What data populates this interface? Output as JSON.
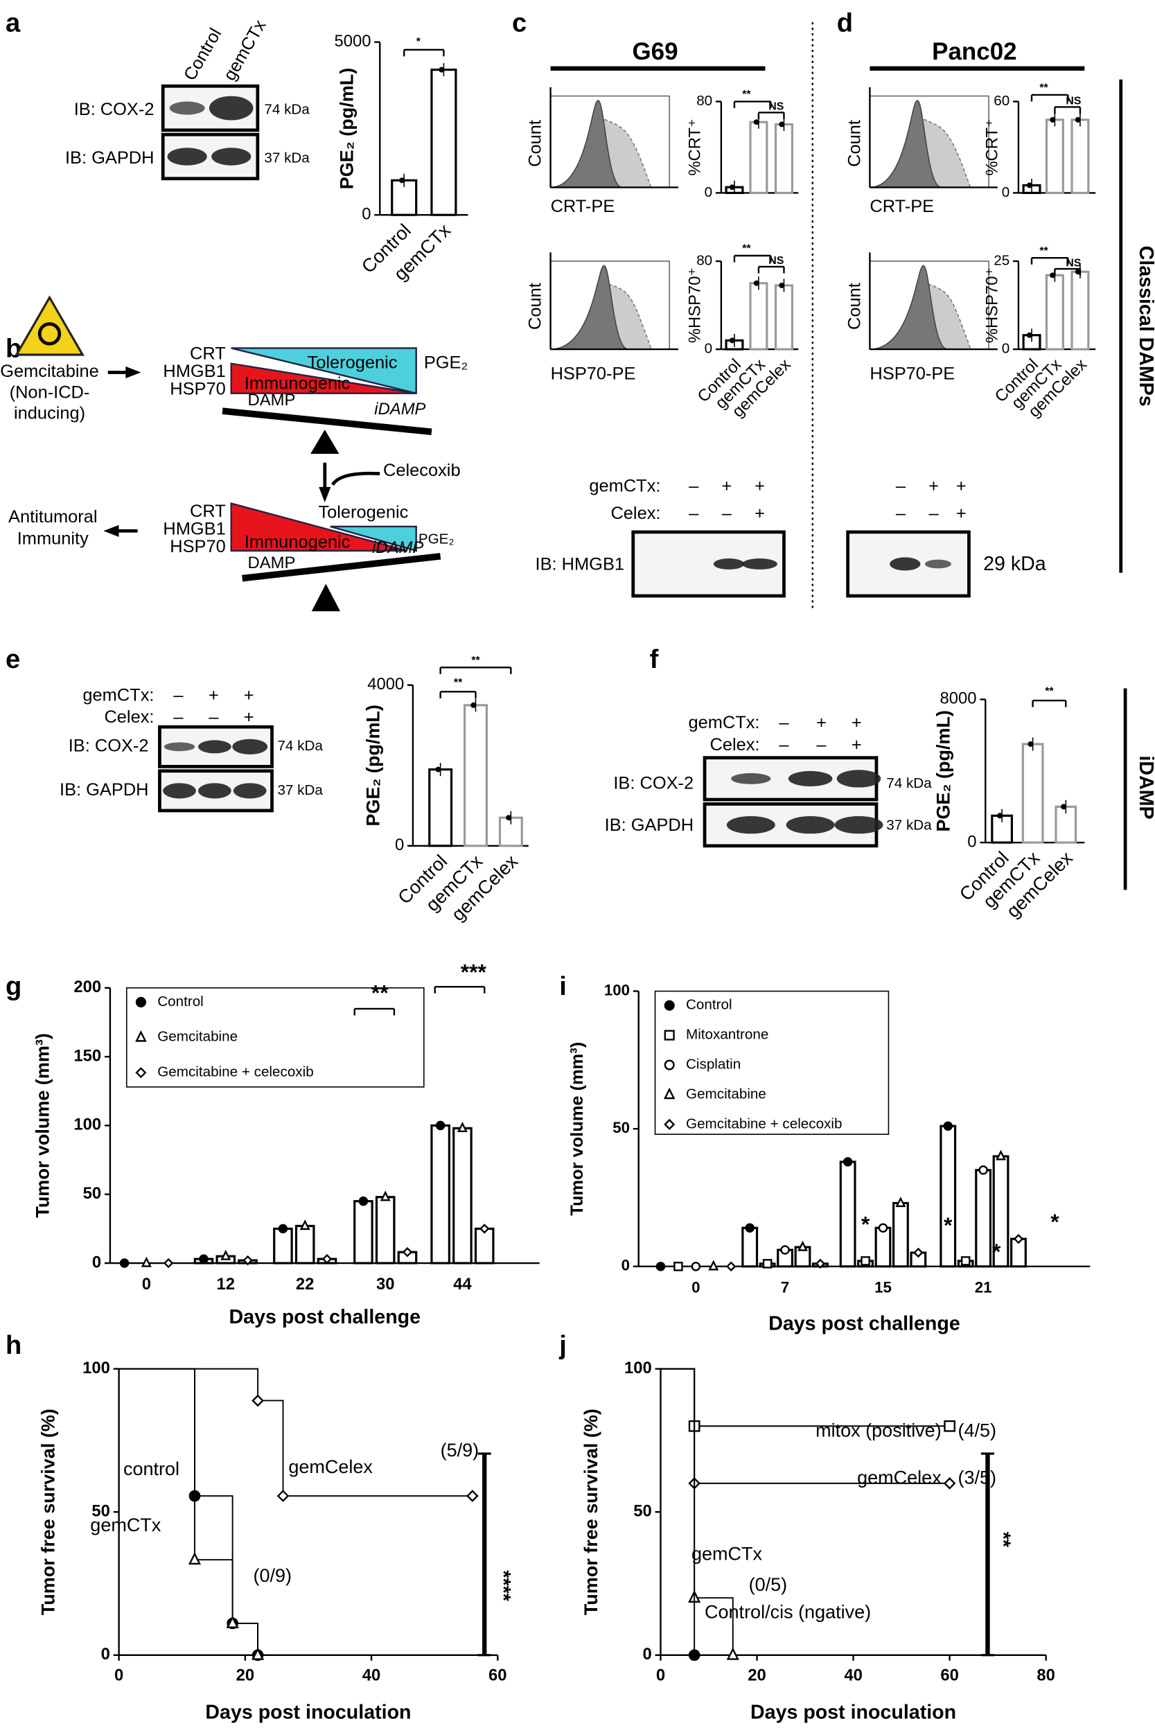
{
  "letters": [
    "a",
    "b",
    "c",
    "d",
    "e",
    "f",
    "g",
    "h",
    "i",
    "j"
  ],
  "panel_a": {
    "lanes": [
      "Control",
      "gemCTx"
    ],
    "rows": [
      "IB: COX-2",
      "IB: GAPDH"
    ],
    "sizes": [
      "74 kDa",
      "37 kDa"
    ]
  },
  "diagram": {
    "drug": "Gemcitabine",
    "drug_note": [
      "(Non-ICD-",
      "inducing)"
    ],
    "damps": [
      "CRT",
      "HMGB1",
      "HSP70"
    ],
    "tolerogenic": "Tolerogenic",
    "immunogenic": "Immunogenic",
    "pge2": "PGE₂",
    "damp": "DAMP",
    "idamp": "iDAMP",
    "celecoxib": "Celecoxib",
    "outcome": [
      "Antitumoral",
      "Immunity"
    ]
  },
  "panel_c": {
    "title": "G69",
    "hist_labels": [
      "CRT-PE",
      "HSP70-PE"
    ],
    "count": "Count",
    "treatments": [
      "gemCTx:",
      "Celex:"
    ],
    "signs": [
      [
        "–",
        "+",
        "+"
      ],
      [
        "–",
        "–",
        "+"
      ]
    ],
    "blot": "IB: HMGB1"
  },
  "panel_d": {
    "title": "Panc02",
    "hist_labels": [
      "CRT-PE",
      "HSP70-PE"
    ],
    "count": "Count",
    "signs": [
      [
        "–",
        "+",
        "+"
      ],
      [
        "–",
        "–",
        "+"
      ]
    ],
    "size": "29 kDa"
  },
  "side_labels": [
    "Classical DAMPs",
    "iDAMP"
  ],
  "panel_e": {
    "treatments": [
      "gemCTx:",
      "Celex:"
    ],
    "signs": [
      [
        "–",
        "+",
        "+"
      ],
      [
        "–",
        "–",
        "+"
      ]
    ],
    "rows": [
      "IB: COX-2",
      "IB: GAPDH"
    ],
    "sizes": [
      "74 kDa",
      "37 kDa"
    ]
  },
  "panel_f": {
    "treatments": [
      "gemCTx:",
      "Celex:"
    ],
    "signs": [
      [
        "–",
        "+",
        "+"
      ],
      [
        "–",
        "–",
        "+"
      ]
    ],
    "rows": [
      "IB: COX-2",
      "IB: GAPDH"
    ],
    "sizes": [
      "74 kDa",
      "37 kDa"
    ]
  },
  "chart_data": [
    {
      "type": "bar",
      "ylabel": "PGE₂ (pg/mL)",
      "categories": [
        "Control",
        "gemCTx"
      ],
      "values": [
        1000,
        4200
      ],
      "colors": [
        "#000000",
        "#000000"
      ],
      "ylim": [
        0,
        5000
      ],
      "yticks": [
        0,
        5000
      ],
      "annotations": [
        "*"
      ]
    },
    {
      "type": "bar",
      "ylabel": "%CRT⁺",
      "categories": [
        null,
        null,
        null
      ],
      "values": [
        5,
        62,
        60
      ],
      "colors": [
        "#000000",
        "#999999",
        "#999999"
      ],
      "ylim": [
        0,
        80
      ],
      "yticks": [
        0,
        80
      ],
      "annotations": [
        "**",
        "NS"
      ]
    },
    {
      "type": "bar",
      "ylabel": "%HSP70⁺",
      "categories": [
        "Control",
        "gemCTx",
        "gemCelex"
      ],
      "values": [
        8,
        60,
        58
      ],
      "colors": [
        "#000000",
        "#999999",
        "#999999"
      ],
      "ylim": [
        0,
        80
      ],
      "yticks": [
        0,
        80
      ],
      "annotations": [
        "**",
        "NS"
      ]
    },
    {
      "type": "bar",
      "ylabel": "%CRT⁺",
      "categories": [
        null,
        null,
        null
      ],
      "values": [
        5,
        48,
        48
      ],
      "colors": [
        "#000000",
        "#999999",
        "#999999"
      ],
      "ylim": [
        0,
        60
      ],
      "yticks": [
        0,
        60
      ],
      "annotations": [
        "**",
        "NS"
      ]
    },
    {
      "type": "bar",
      "ylabel": "%HSP70⁺",
      "categories": [
        "Control",
        "gemCTx",
        "gemCelex"
      ],
      "values": [
        4,
        21,
        22
      ],
      "colors": [
        "#000000",
        "#999999",
        "#999999"
      ],
      "ylim": [
        0,
        25
      ],
      "yticks": [
        0,
        25
      ],
      "annotations": [
        "**",
        "NS"
      ]
    },
    {
      "type": "bar",
      "ylabel": "PGE₂ (pg/mL)",
      "categories": [
        "Control",
        "gemCTx",
        "gemCelex"
      ],
      "values": [
        1900,
        3500,
        700
      ],
      "colors": [
        "#000000",
        "#999999",
        "#999999"
      ],
      "ylim": [
        0,
        4000
      ],
      "yticks": [
        0,
        4000
      ],
      "annotations": [
        "**",
        "**"
      ]
    },
    {
      "type": "bar",
      "ylabel": "PGE₂ (pg/mL)",
      "categories": [
        "Control",
        "gemCTx",
        "gemCelex"
      ],
      "values": [
        1500,
        5500,
        2000
      ],
      "colors": [
        "#000000",
        "#999999",
        "#999999"
      ],
      "ylim": [
        0,
        8000
      ],
      "yticks": [
        0,
        8000
      ],
      "annotations": [
        "**"
      ]
    },
    {
      "type": "bar",
      "ylabel": "Tumor volume (mm³)",
      "xlabel": "Days post challenge",
      "categories": [
        "0",
        "12",
        "22",
        "30",
        "44"
      ],
      "ylim": [
        0,
        200
      ],
      "yticks": [
        0,
        50,
        100,
        150,
        200
      ],
      "legend": "top-left",
      "annotations": [
        "**",
        "***"
      ],
      "series": [
        {
          "name": "Control",
          "color": "#000000",
          "marker": "circle",
          "values": [
            0,
            3,
            25,
            45,
            100
          ]
        },
        {
          "name": "Gemcitabine",
          "color": "#000000",
          "marker": "triangle",
          "values": [
            0,
            5,
            27,
            48,
            98
          ]
        },
        {
          "name": "Gemcitabine + celecoxib",
          "color": "#000000",
          "marker": "diamond",
          "values": [
            0,
            2,
            3,
            8,
            25
          ]
        }
      ]
    },
    {
      "type": "bar",
      "ylabel": "Tumor volume (mm³)",
      "xlabel": "Days post challenge",
      "categories": [
        "0",
        "7",
        "15",
        "21"
      ],
      "ylim": [
        0,
        100
      ],
      "yticks": [
        0,
        50,
        100
      ],
      "legend": "top-left",
      "annotations": [
        "*",
        "*",
        "*",
        "*"
      ],
      "series": [
        {
          "name": "Control",
          "color": "#000000",
          "marker": "circle",
          "values": [
            0,
            14,
            38,
            51
          ]
        },
        {
          "name": "Mitoxantrone",
          "color": "#000000",
          "marker": "square",
          "values": [
            0,
            1,
            2,
            2
          ]
        },
        {
          "name": "Cisplatin",
          "color": "#000000",
          "marker": "ring",
          "values": [
            0,
            6,
            14,
            35
          ]
        },
        {
          "name": "Gemcitabine",
          "color": "#000000",
          "marker": "triangle",
          "values": [
            0,
            7,
            23,
            40
          ]
        },
        {
          "name": "Gemcitabine + celecoxib",
          "color": "#000000",
          "marker": "diamond",
          "values": [
            0,
            1,
            5,
            10
          ]
        }
      ]
    },
    {
      "type": "line",
      "step": true,
      "ylabel": "Tumor free survival (%)",
      "xlabel": "Days post inoculation",
      "xlim": [
        0,
        60
      ],
      "xticks": [
        0,
        20,
        40,
        60
      ],
      "ylim": [
        0,
        100
      ],
      "yticks": [
        0,
        50,
        100
      ],
      "annotations": [
        "(5/9)",
        "(0/9)",
        "****"
      ],
      "series": [
        {
          "name": "control",
          "color": "#000000",
          "marker": "circle",
          "x": [
            0,
            12,
            18,
            22
          ],
          "values": [
            100,
            55.6,
            11.1,
            0
          ]
        },
        {
          "name": "gemCTx",
          "color": "#000000",
          "marker": "triangle",
          "x": [
            0,
            12,
            18,
            22
          ],
          "values": [
            100,
            33.3,
            11.1,
            0
          ]
        },
        {
          "name": "gemCelex",
          "color": "#000000",
          "marker": "diamond",
          "x": [
            0,
            22,
            26,
            56
          ],
          "values": [
            100,
            88.9,
            55.6,
            55.6
          ]
        }
      ]
    },
    {
      "type": "line",
      "step": true,
      "ylabel": "Tumor free survival (%)",
      "xlabel": "Days post inoculation",
      "xlim": [
        0,
        80
      ],
      "xticks": [
        0,
        20,
        40,
        60,
        80
      ],
      "ylim": [
        0,
        100
      ],
      "yticks": [
        0,
        50,
        100
      ],
      "annotations": [
        "(4/5)",
        "(3/5)",
        "(0/5)",
        "**"
      ],
      "series": [
        {
          "name": "mitox (positive)",
          "color": "#000000",
          "marker": "square",
          "x": [
            0,
            7,
            60
          ],
          "values": [
            100,
            80,
            80
          ]
        },
        {
          "name": "gemCelex",
          "color": "#000000",
          "marker": "diamond",
          "x": [
            0,
            7,
            60
          ],
          "values": [
            100,
            60,
            60
          ]
        },
        {
          "name": "gemCTx",
          "color": "#000000",
          "marker": "triangle",
          "x": [
            0,
            7,
            15
          ],
          "values": [
            100,
            20,
            0
          ]
        },
        {
          "name": "Control/cis (ngative)",
          "color": "#000000",
          "marker": "circle",
          "x": [
            0,
            7
          ],
          "values": [
            100,
            0
          ]
        }
      ]
    }
  ]
}
